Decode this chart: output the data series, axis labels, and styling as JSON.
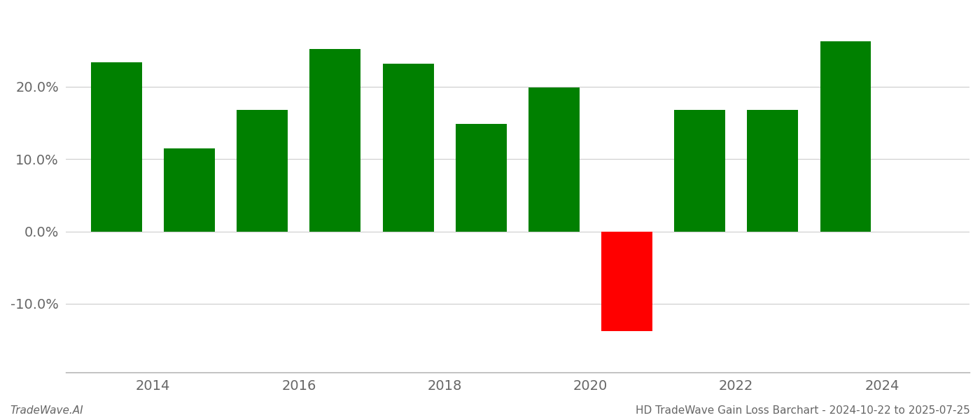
{
  "years": [
    2013.5,
    2014.5,
    2015.5,
    2016.5,
    2017.5,
    2018.5,
    2019.5,
    2020.5,
    2021.5,
    2022.5,
    2023.5
  ],
  "values": [
    0.233,
    0.115,
    0.168,
    0.252,
    0.232,
    0.148,
    0.199,
    -0.138,
    0.168,
    0.168,
    0.262
  ],
  "colors": [
    "#008000",
    "#008000",
    "#008000",
    "#008000",
    "#008000",
    "#008000",
    "#008000",
    "#ff0000",
    "#008000",
    "#008000",
    "#008000"
  ],
  "bar_width": 0.7,
  "footer_left": "TradeWave.AI",
  "footer_right": "HD TradeWave Gain Loss Barchart - 2024-10-22 to 2025-07-25",
  "ytick_positions": [
    -0.1,
    0.0,
    0.1,
    0.2
  ],
  "ytick_labels": [
    "-10.0%",
    "0.0%",
    "10.0%",
    "20.0%"
  ],
  "ylim": [
    -0.195,
    0.305
  ],
  "xlim": [
    2012.8,
    2025.2
  ],
  "xtick_values": [
    2014,
    2016,
    2018,
    2020,
    2022,
    2024
  ],
  "grid_color": "#cccccc",
  "bg_color": "#ffffff",
  "text_color": "#666666",
  "footer_fontsize": 11,
  "tick_fontsize": 14
}
